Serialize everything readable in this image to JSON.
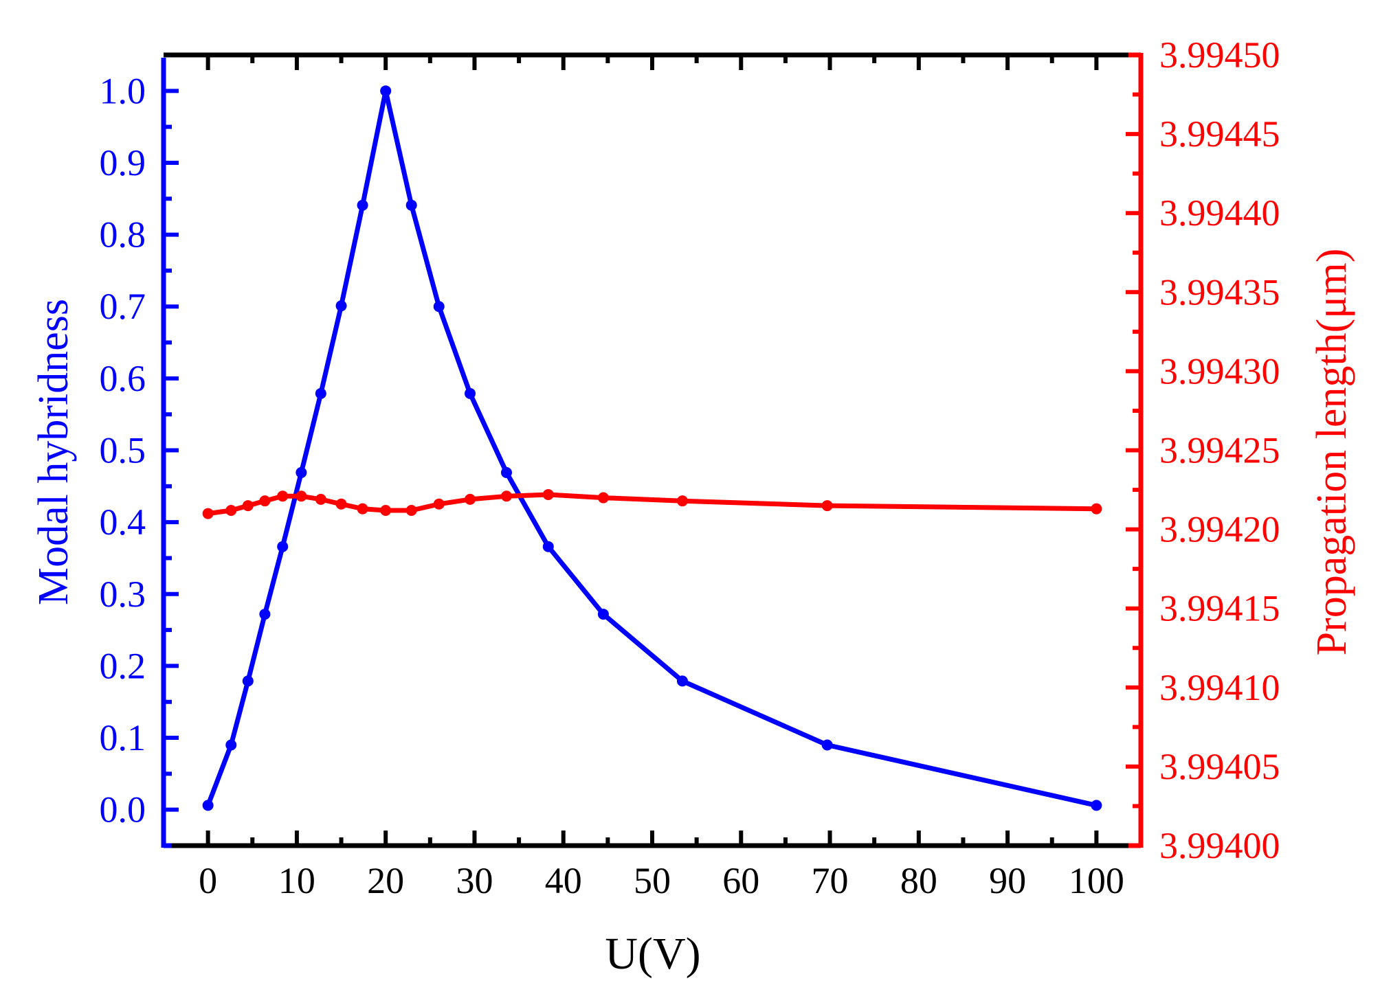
{
  "colors": {
    "left_series": "#0000ff",
    "right_series": "#ff0000",
    "axis_black": "#000000",
    "background": "#ffffff"
  },
  "chart_data": {
    "type": "line",
    "title": "",
    "xlabel": "U(V)",
    "ylabel": "Modal hybridness",
    "y2label": "Propagation length(μm)",
    "xlim": [
      -5,
      105
    ],
    "ylim": [
      -0.05,
      1.05
    ],
    "y2lim": [
      3.994,
      3.9945
    ],
    "grid": false,
    "legend": null,
    "x_ticks": [
      0,
      10,
      20,
      30,
      40,
      50,
      60,
      70,
      80,
      90,
      100
    ],
    "x_tick_labels": [
      "0",
      "10",
      "20",
      "30",
      "40",
      "50",
      "60",
      "70",
      "80",
      "90",
      "100"
    ],
    "y_ticks": [
      0.0,
      0.1,
      0.2,
      0.3,
      0.4,
      0.5,
      0.6,
      0.7,
      0.8,
      0.9,
      1.0
    ],
    "y_tick_labels": [
      "0.0",
      "0.1",
      "0.2",
      "0.3",
      "0.4",
      "0.5",
      "0.6",
      "0.7",
      "0.8",
      "0.9",
      "1.0"
    ],
    "y2_ticks": [
      3.994,
      3.99405,
      3.9941,
      3.99415,
      3.9942,
      3.99425,
      3.9943,
      3.99435,
      3.9944,
      3.99445,
      3.9945
    ],
    "y2_tick_labels": [
      "3.99400",
      "3.99405",
      "3.99410",
      "3.99415",
      "3.99420",
      "3.99425",
      "3.99430",
      "3.99435",
      "3.99440",
      "3.99445",
      "3.99450"
    ],
    "series": [
      {
        "name": "Modal hybridness",
        "axis": "left",
        "color": "#0000ff",
        "marker": "circle",
        "x": [
          0,
          2.6,
          4.5,
          6.4,
          8.4,
          10.5,
          12.7,
          15.0,
          17.4,
          20,
          22.9,
          26.0,
          29.5,
          33.6,
          38.3,
          44.5,
          53.4,
          69.7,
          100
        ],
        "values": [
          0.006,
          0.09,
          0.179,
          0.272,
          0.366,
          0.469,
          0.579,
          0.701,
          0.841,
          1.0,
          0.841,
          0.7,
          0.579,
          0.469,
          0.366,
          0.272,
          0.179,
          0.09,
          0.006
        ]
      },
      {
        "name": "Propagation length",
        "axis": "right",
        "color": "#ff0000",
        "marker": "circle",
        "x": [
          0,
          2.6,
          4.5,
          6.4,
          8.4,
          10.5,
          12.7,
          15.0,
          17.4,
          20,
          22.9,
          26.0,
          29.5,
          33.6,
          38.3,
          44.5,
          53.4,
          69.7,
          100
        ],
        "values": [
          3.99421,
          3.994212,
          3.994215,
          3.994218,
          3.994221,
          3.994221,
          3.994219,
          3.994216,
          3.994213,
          3.994212,
          3.994212,
          3.994216,
          3.994219,
          3.994221,
          3.994222,
          3.99422,
          3.994218,
          3.994215,
          3.994213
        ]
      }
    ]
  }
}
